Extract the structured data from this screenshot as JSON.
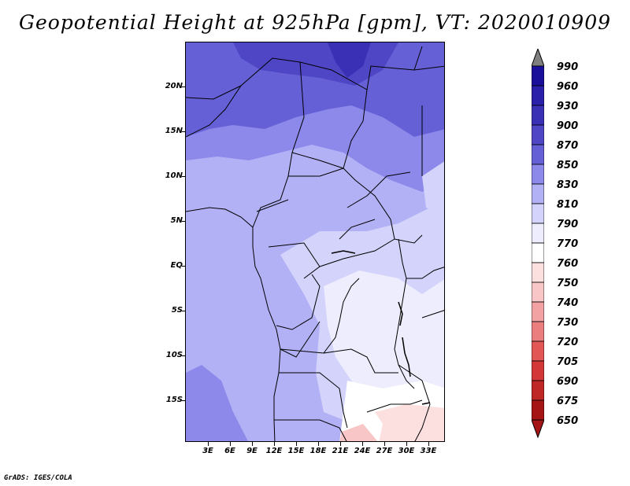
{
  "title": "Geopotential Height at 925hPa [gpm], VT: 2020010909",
  "credit": "GrADS: IGES/COLA",
  "axes": {
    "y_labels": [
      "20N",
      "15N",
      "10N",
      "5N",
      "EQ",
      "5S",
      "10S",
      "15S"
    ],
    "x_labels": [
      "3E",
      "6E",
      "9E",
      "12E",
      "15E",
      "18E",
      "21E",
      "24E",
      "27E",
      "30E",
      "33E"
    ]
  },
  "colorbar": {
    "labels": [
      "990",
      "960",
      "930",
      "900",
      "870",
      "850",
      "830",
      "810",
      "790",
      "770",
      "760",
      "750",
      "740",
      "730",
      "720",
      "705",
      "690",
      "675",
      "650"
    ],
    "colors": {
      "c990": "#7f7f7f",
      "c960": "#1a0f9a",
      "c930": "#2a1fa8",
      "c900": "#3a30b5",
      "c870": "#4f46c5",
      "c850": "#6560d6",
      "c830": "#8c89ea",
      "c810": "#b3b1f5",
      "c790": "#d3d3fb",
      "c770": "#ededfd",
      "c760": "#ffffff",
      "c750": "#fce0e0",
      "c740": "#f8c6c6",
      "c730": "#f2a2a2",
      "c720": "#ea7e7e",
      "c705": "#e25656",
      "c690": "#d43737",
      "c675": "#bf2626",
      "c650": "#a61515"
    }
  }
}
